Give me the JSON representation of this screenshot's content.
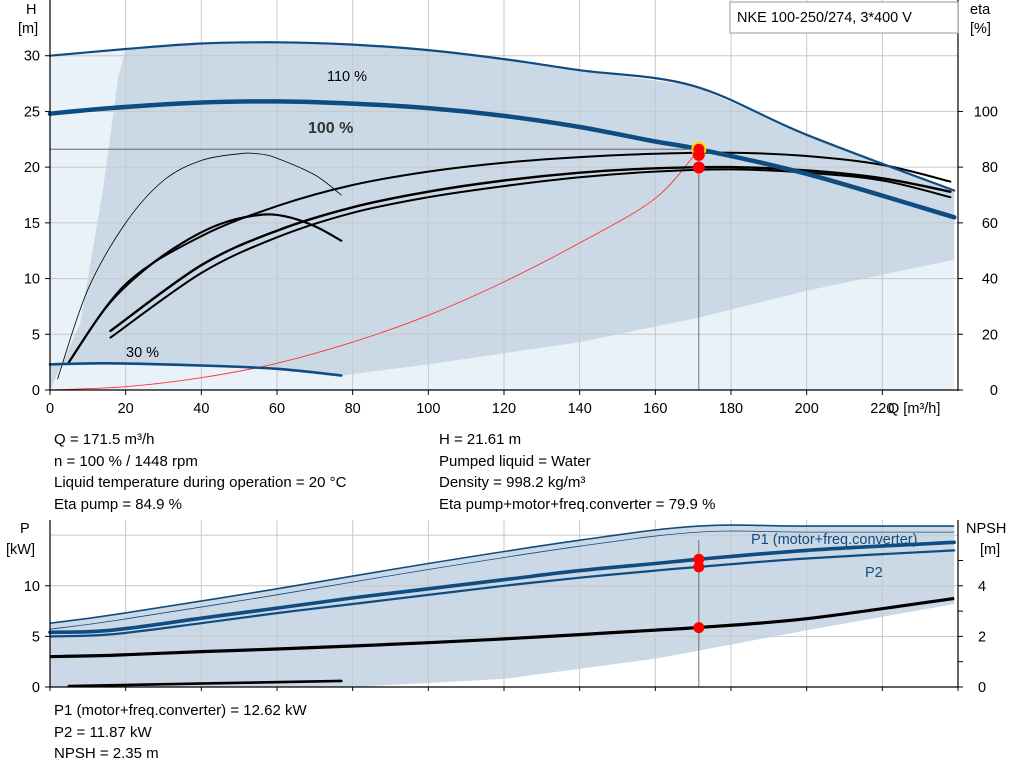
{
  "title_box": "NKE 100-250/274, 3*400 V",
  "colors": {
    "band": "#cbd8e5",
    "band_light": "#e9f1f9",
    "pump_curve": "#0f4c81",
    "eta_curve": "#000000",
    "system_curve": "#ff3333",
    "op_point": "#ff0000",
    "grid": "#c8c8c8"
  },
  "info_top": {
    "left": [
      "Q = 171.5 m³/h",
      "n = 100 % / 1448 rpm",
      "Liquid temperature during operation = 20 °C",
      "Eta pump = 84.9 %"
    ],
    "right": [
      "H = 21.61 m",
      "Pumped liquid = Water",
      "Density = 998.2 kg/m³",
      "Eta pump+motor+freq.converter = 79.9 %"
    ]
  },
  "info_bottom": [
    "P1 (motor+freq.converter) = 12.62 kW",
    "P2 = 11.87 kW",
    "NPSH = 2.35 m"
  ],
  "chart_data": [
    {
      "type": "line",
      "xlabel": "Q [m³/h]",
      "ylabel": "H\n[m]",
      "y2label": "eta\n[%]",
      "xlim": [
        0,
        240
      ],
      "xticks": [
        0,
        20,
        40,
        60,
        80,
        100,
        120,
        140,
        160,
        180,
        200,
        220
      ],
      "ylim": [
        0,
        35
      ],
      "yticks": [
        0,
        5,
        10,
        15,
        20,
        25,
        30
      ],
      "y2lim": [
        0,
        140
      ],
      "y2ticks": [
        0,
        20,
        40,
        60,
        80,
        100
      ],
      "grid": true,
      "annotations": [
        "110 %",
        "100 %",
        "30 %"
      ],
      "series": [
        {
          "role": "head_110",
          "label": "110 %",
          "x": [
            0,
            20,
            40,
            60,
            80,
            100,
            120,
            140,
            170,
            200,
            239
          ],
          "y": [
            30,
            30.6,
            31.1,
            31.2,
            31,
            30.5,
            29.7,
            28.7,
            27.3,
            22.9,
            17.9
          ]
        },
        {
          "role": "head_100",
          "label": "100 %",
          "x": [
            0,
            16,
            40,
            60,
            80,
            100,
            120,
            140,
            160,
            171.5,
            200,
            239
          ],
          "y": [
            24.8,
            25.3,
            25.8,
            25.9,
            25.7,
            25.3,
            24.6,
            23.6,
            22.3,
            21.61,
            19.4,
            15.5
          ]
        },
        {
          "role": "head_30",
          "label": "30 %",
          "x": [
            0,
            15,
            40,
            60,
            77
          ],
          "y": [
            2.3,
            2.4,
            2.2,
            1.9,
            1.3
          ]
        },
        {
          "role": "eta_100_upper",
          "x": [
            5,
            20,
            40,
            60,
            80,
            100,
            120,
            140,
            160,
            180,
            200,
            220,
            238
          ],
          "y": [
            2.5,
            9.5,
            13.8,
            16.5,
            18.4,
            19.6,
            20.4,
            20.9,
            21.2,
            21.3,
            21,
            20.2,
            18.7
          ]
        },
        {
          "role": "eta_100_mid",
          "x": [
            16,
            40,
            60,
            80,
            100,
            120,
            140,
            160,
            180,
            200,
            220,
            238
          ],
          "y": [
            5.3,
            11.2,
            14.3,
            16.4,
            17.8,
            18.8,
            19.5,
            19.9,
            20,
            19.7,
            19,
            17.8
          ]
        },
        {
          "role": "eta_100_lower",
          "x": [
            16,
            40,
            60,
            80,
            100,
            120,
            140,
            160,
            180,
            200,
            220,
            238
          ],
          "y": [
            4.7,
            10.5,
            13.7,
            15.9,
            17.3,
            18.3,
            19.1,
            19.6,
            19.8,
            19.5,
            18.8,
            17.3
          ]
        },
        {
          "role": "eta_small_thin",
          "x": [
            2,
            10,
            20,
            30,
            40,
            50,
            55,
            60,
            70,
            77
          ],
          "y": [
            1,
            9,
            15,
            18.8,
            20.6,
            21.2,
            21.2,
            20.8,
            19.3,
            17.5
          ]
        },
        {
          "role": "eta_small_thick",
          "x": [
            5,
            15,
            25,
            35,
            45,
            55,
            62,
            70,
            77
          ],
          "y": [
            2.5,
            7.5,
            10.8,
            13.2,
            14.9,
            15.7,
            15.6,
            14.7,
            13.4
          ]
        },
        {
          "role": "system_curve",
          "x": [
            0,
            20,
            40,
            60,
            80,
            100,
            120,
            140,
            160,
            171.5
          ],
          "y": [
            0,
            0.3,
            1.1,
            2.4,
            4.3,
            6.7,
            9.7,
            13.2,
            17.2,
            21.61
          ]
        }
      ],
      "operating_points": [
        {
          "x": 171.5,
          "y": 21.61
        },
        {
          "x": 171.5,
          "y": 21.1
        },
        {
          "x": 171.5,
          "y": 19.97
        }
      ]
    },
    {
      "type": "line",
      "ylabel": "P\n[kW]",
      "y2label": "NPSH\n[m]",
      "xlim": [
        0,
        240
      ],
      "ylim": [
        0,
        16.5
      ],
      "yticks": [
        0,
        5,
        10
      ],
      "y2lim": [
        0,
        6.6
      ],
      "y2ticks": [
        0,
        2,
        4
      ],
      "grid": true,
      "legend": [
        "P1 (motor+freq.converter)",
        "P2"
      ],
      "series": [
        {
          "role": "P1_110",
          "x": [
            0,
            18,
            60,
            100,
            140,
            171.5,
            200,
            239
          ],
          "y": [
            6.3,
            7.2,
            9.7,
            12.2,
            14.5,
            15.9,
            15.9,
            15.9
          ]
        },
        {
          "role": "P1_100",
          "name": "P1 (motor+freq.converter)",
          "x": [
            0,
            16,
            40,
            60,
            80,
            100,
            120,
            140,
            160,
            171.5,
            200,
            239
          ],
          "y": [
            5.4,
            5.6,
            6.8,
            7.8,
            8.8,
            9.7,
            10.6,
            11.5,
            12.2,
            12.62,
            13.5,
            14.3
          ]
        },
        {
          "role": "P2_100",
          "name": "P2",
          "x": [
            0,
            16,
            40,
            60,
            80,
            100,
            120,
            140,
            160,
            171.5,
            200,
            239
          ],
          "y": [
            5,
            5.2,
            6.3,
            7.3,
            8.2,
            9.1,
            10,
            10.8,
            11.5,
            11.87,
            12.7,
            13.5
          ]
        },
        {
          "role": "NPSH",
          "x": [
            0,
            16,
            40,
            60,
            80,
            100,
            120,
            140,
            160,
            171.5,
            200,
            239
          ],
          "y": [
            1.2,
            1.25,
            1.4,
            1.5,
            1.62,
            1.75,
            1.9,
            2.07,
            2.25,
            2.35,
            2.7,
            3.5
          ]
        },
        {
          "role": "P_30",
          "x": [
            5,
            77
          ],
          "y": [
            0.1,
            0.6
          ]
        }
      ],
      "operating_points": [
        {
          "x": 171.5,
          "y": 12.62
        },
        {
          "x": 171.5,
          "y": 11.87
        },
        {
          "x": 171.5,
          "y": 5.87
        }
      ]
    }
  ]
}
